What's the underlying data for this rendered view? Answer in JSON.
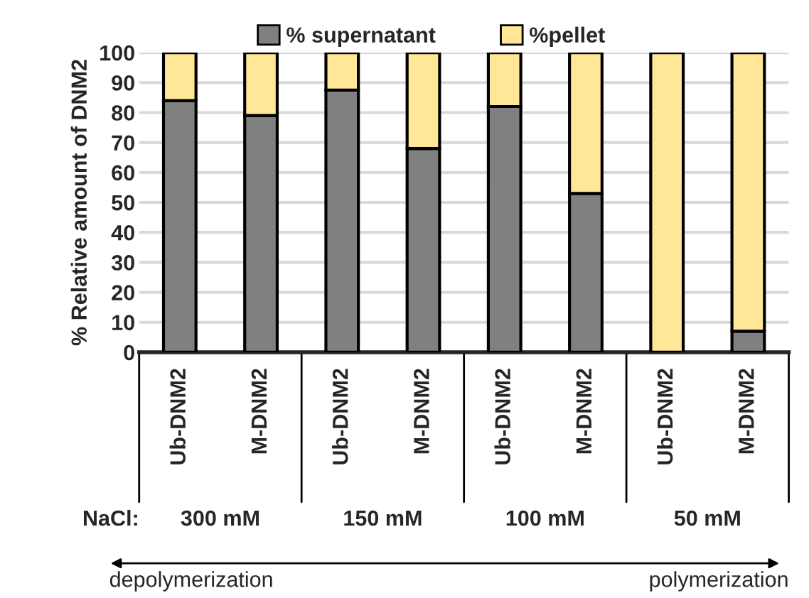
{
  "chart_data": {
    "type": "bar",
    "stacked": true,
    "ylabel": "% Relative amount of DNM2",
    "categories": [
      "Ub-DNM2",
      "M-DNM2",
      "Ub-DNM2",
      "M-DNM2",
      "Ub-DNM2",
      "M-DNM2",
      "Ub-DNM2",
      "M-DNM2"
    ],
    "series": [
      {
        "name": "% supernatant",
        "color": "#808080",
        "values": [
          84,
          79,
          87.5,
          68,
          82,
          53,
          0,
          7
        ]
      },
      {
        "name": "%pellet",
        "color": "#ffe699",
        "values": [
          16,
          21,
          12.5,
          32,
          18,
          47,
          100,
          93
        ]
      }
    ],
    "ylim": [
      0,
      100
    ],
    "yticks": [
      0,
      10,
      20,
      30,
      40,
      50,
      60,
      70,
      80,
      90,
      100
    ],
    "grid": "y",
    "legend": "top",
    "annotations": [
      "NaCl:",
      "300 mM",
      "150 mM",
      "100 mM",
      "50 mM",
      "depolymerization",
      "polymerization"
    ]
  }
}
